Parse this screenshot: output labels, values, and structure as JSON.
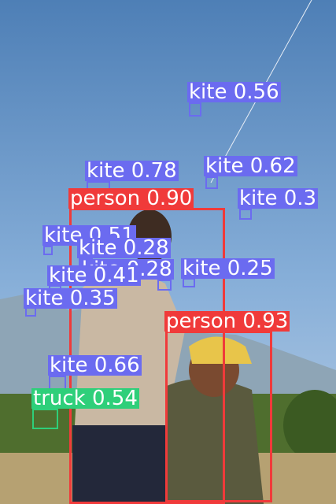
{
  "colors": {
    "kite": "#6b6bf0",
    "person": "#f03a3a",
    "truck": "#2ecf7a",
    "label_text": "#ffffff"
  },
  "detections": [
    {
      "label": "kite 0.56",
      "cls": "kite"
    },
    {
      "label": "kite 0.78",
      "cls": "kite"
    },
    {
      "label": "kite 0.62",
      "cls": "kite"
    },
    {
      "label": "kite 0.3",
      "cls": "kite"
    },
    {
      "label": "person 0.90",
      "cls": "person"
    },
    {
      "label": "kite 0.51",
      "cls": "kite"
    },
    {
      "label": "kite 0.28",
      "cls": "kite"
    },
    {
      "label": "kite 0.28",
      "cls": "kite"
    },
    {
      "label": "kite 0.25",
      "cls": "kite"
    },
    {
      "label": "kite 0.41",
      "cls": "kite"
    },
    {
      "label": "kite 0.35",
      "cls": "kite"
    },
    {
      "label": "person 0.93",
      "cls": "person"
    },
    {
      "label": "kite 0.66",
      "cls": "kite"
    },
    {
      "label": "truck 0.54",
      "cls": "truck"
    }
  ]
}
